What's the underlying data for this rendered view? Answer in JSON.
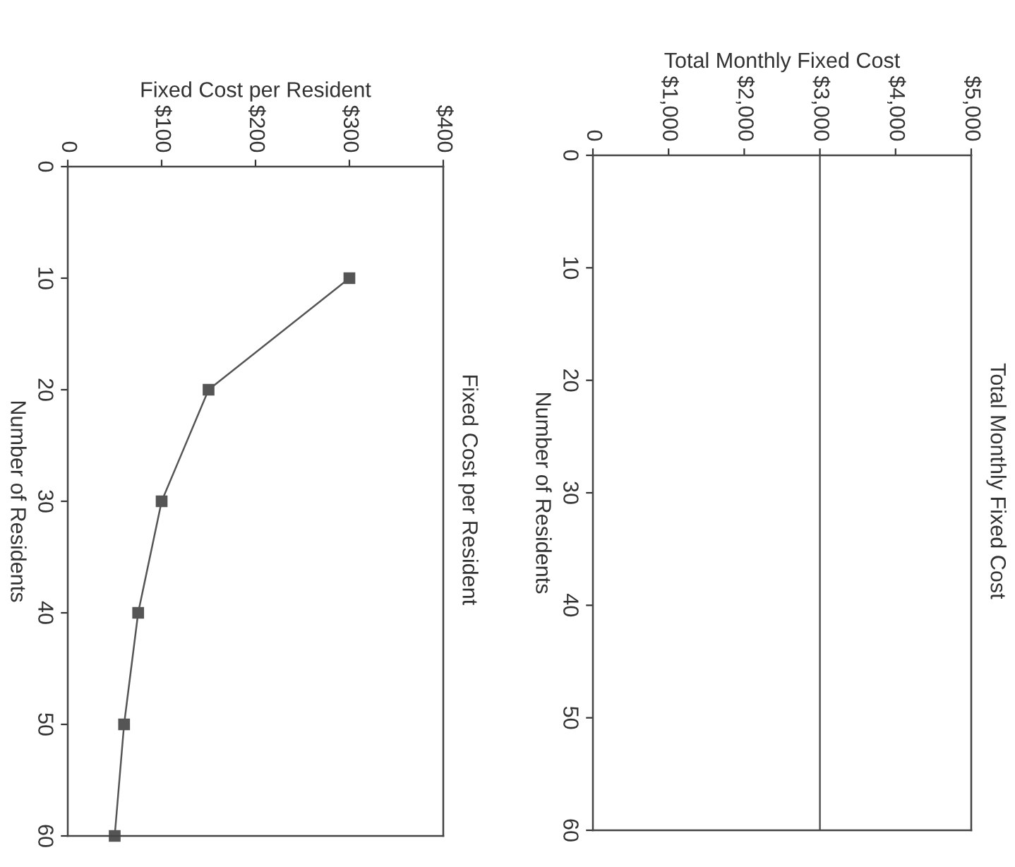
{
  "chart_data": [
    {
      "type": "line",
      "title": "Total Monthly Fixed Cost",
      "xlabel": "Total Monthly Fixed Cost",
      "ylabel": "Number of Residents",
      "ref_lines": [
        {
          "axis": "x",
          "value": 3000,
          "color": "#555555",
          "line_style": "solid"
        }
      ],
      "ylim": [
        60,
        0
      ],
      "yticks": [
        0,
        10,
        20,
        30,
        40,
        50,
        60
      ],
      "xlim": [
        0,
        5000
      ],
      "xticks": [
        0,
        {
          "value": 1000,
          "label": "$1,000"
        },
        {
          "value": 2000,
          "label": "$2,000"
        },
        {
          "value": 3000,
          "label": "$3,000"
        },
        {
          "value": 4000,
          "label": "$4,000"
        },
        {
          "value": 5000,
          "label": "$5,000"
        }
      ],
      "marker": "none",
      "grid": false,
      "legend": false
    },
    {
      "type": "line",
      "title": "Fixed Cost per Resident",
      "xlabel": "Fixed Cost per Resident",
      "ylabel": "Number of Residents",
      "x": [
        300,
        150,
        100,
        75,
        60,
        50
      ],
      "series": [
        {
          "color": "#555555",
          "values": [
            10,
            20,
            30,
            40,
            50,
            60
          ]
        }
      ],
      "ylim": [
        60,
        0
      ],
      "yticks": [
        0,
        10,
        20,
        30,
        40,
        50,
        60
      ],
      "xlim": [
        0,
        400
      ],
      "xticks": [
        0,
        {
          "value": 100,
          "label": "$100"
        },
        {
          "value": 200,
          "label": "$200"
        },
        {
          "value": 300,
          "label": "$300"
        },
        {
          "value": 400,
          "label": "$400"
        }
      ],
      "marker": "square",
      "grid": false,
      "legend": false
    }
  ]
}
